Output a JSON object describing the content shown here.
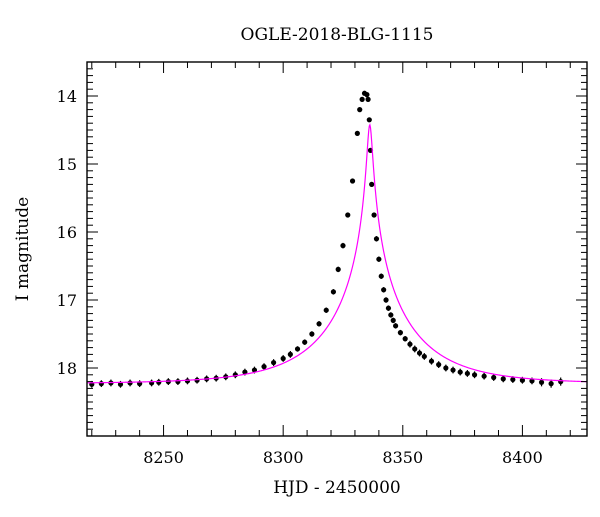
{
  "chart_data": {
    "type": "scatter",
    "title": "OGLE-2018-BLG-1115",
    "xlabel": "HJD - 2450000",
    "ylabel": "I magnitude",
    "xlim": [
      8218,
      8427
    ],
    "ylim": [
      19.0,
      13.5
    ],
    "y_inverted": true,
    "x_ticks": [
      8250,
      8300,
      8350,
      8400
    ],
    "x_tick_labels": [
      "8250",
      "8300",
      "8350",
      "8400"
    ],
    "y_ticks": [
      14,
      15,
      16,
      17,
      18
    ],
    "y_tick_labels": [
      "14",
      "15",
      "16",
      "17",
      "18"
    ],
    "grid": false,
    "colors": {
      "data": "#000000",
      "model": "#ff00ff"
    },
    "series": [
      {
        "kind": "points_with_errorbars",
        "x": [
          8220,
          8224,
          8228,
          8232,
          8236,
          8240,
          8245,
          8248,
          8252,
          8256,
          8260,
          8264,
          8268,
          8272,
          8276,
          8280,
          8284,
          8288,
          8292,
          8296,
          8300,
          8303,
          8306,
          8309,
          8312,
          8315,
          8318,
          8321,
          8323,
          8325,
          8327,
          8329,
          8331,
          8332,
          8333,
          8334,
          8335,
          8335.5,
          8336,
          8336.5,
          8337,
          8338,
          8339,
          8340,
          8341,
          8342,
          8343,
          8344,
          8345,
          8346,
          8347,
          8349,
          8351,
          8353,
          8355,
          8357,
          8359,
          8362,
          8365,
          8368,
          8371,
          8374,
          8377,
          8380,
          8384,
          8388,
          8392,
          8396,
          8400,
          8404,
          8408,
          8412,
          8416
        ],
        "y": [
          18.24,
          18.23,
          18.22,
          18.24,
          18.22,
          18.23,
          18.22,
          18.21,
          18.2,
          18.2,
          18.19,
          18.18,
          18.16,
          18.15,
          18.13,
          18.1,
          18.06,
          18.03,
          17.98,
          17.92,
          17.86,
          17.8,
          17.72,
          17.62,
          17.5,
          17.35,
          17.15,
          16.88,
          16.55,
          16.2,
          15.75,
          15.25,
          14.55,
          14.2,
          14.05,
          13.96,
          13.98,
          14.05,
          14.35,
          14.8,
          15.3,
          15.75,
          16.1,
          16.4,
          16.65,
          16.85,
          17.0,
          17.12,
          17.22,
          17.3,
          17.38,
          17.48,
          17.57,
          17.65,
          17.72,
          17.78,
          17.83,
          17.9,
          17.95,
          18.0,
          18.03,
          18.06,
          18.08,
          18.1,
          18.12,
          18.14,
          18.16,
          18.17,
          18.18,
          18.19,
          18.21,
          18.23,
          18.2
        ],
        "err": [
          0.05,
          0.05,
          0.05,
          0.05,
          0.05,
          0.05,
          0.05,
          0.05,
          0.05,
          0.05,
          0.05,
          0.05,
          0.05,
          0.05,
          0.05,
          0.05,
          0.05,
          0.05,
          0.05,
          0.05,
          0.05,
          0.05,
          0.04,
          0.04,
          0.04,
          0.04,
          0.04,
          0.04,
          0.04,
          0.04,
          0.03,
          0.03,
          0.03,
          0.03,
          0.03,
          0.03,
          0.03,
          0.03,
          0.03,
          0.03,
          0.03,
          0.03,
          0.04,
          0.04,
          0.04,
          0.04,
          0.04,
          0.04,
          0.04,
          0.04,
          0.04,
          0.04,
          0.04,
          0.05,
          0.05,
          0.05,
          0.05,
          0.05,
          0.05,
          0.05,
          0.05,
          0.05,
          0.05,
          0.05,
          0.05,
          0.05,
          0.05,
          0.05,
          0.05,
          0.05,
          0.06,
          0.06,
          0.06
        ]
      },
      {
        "kind": "model_curve",
        "baseline_mag": 18.23,
        "t0": 8336.2,
        "tE": 35,
        "u0": 0.03
      }
    ]
  }
}
